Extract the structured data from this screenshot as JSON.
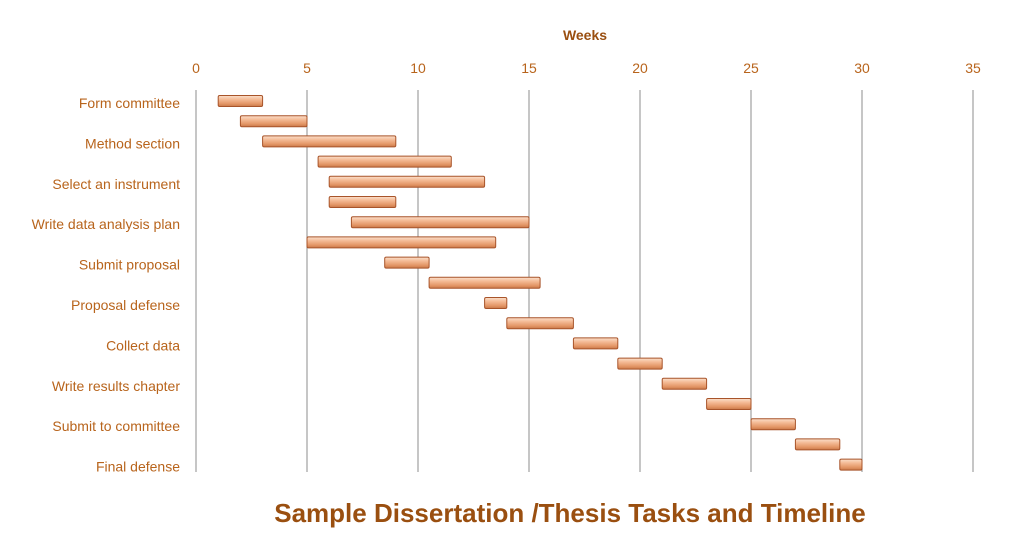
{
  "chart_data": {
    "type": "bar",
    "orientation": "horizontal",
    "stacked_gantt": true,
    "title": "Sample Dissertation /Thesis Tasks and Timeline",
    "xlabel": "Weeks",
    "xlim": [
      0,
      35
    ],
    "xticks": [
      "0",
      "5",
      "10",
      "15",
      "20",
      "25",
      "30",
      "35"
    ],
    "grid": "vertical",
    "bar_color": "#e8a276",
    "categories": [
      "Form committee",
      "Method section",
      "Select an instrument",
      "Write data analysis plan",
      "Submit proposal",
      "Proposal defense",
      "Collect data",
      "Write results chapter",
      "Submit to committee",
      "Final defense"
    ],
    "tasks": [
      {
        "start": 1,
        "end": 3
      },
      {
        "start": 2,
        "end": 5
      },
      {
        "start": 3,
        "end": 9
      },
      {
        "start": 5.5,
        "end": 11.5
      },
      {
        "start": 6,
        "end": 13
      },
      {
        "start": 6,
        "end": 9
      },
      {
        "start": 7,
        "end": 15
      },
      {
        "start": 5,
        "end": 13.5
      },
      {
        "start": 8.5,
        "end": 10.5
      },
      {
        "start": 10.5,
        "end": 15.5
      },
      {
        "start": 13,
        "end": 14
      },
      {
        "start": 14,
        "end": 17
      },
      {
        "start": 17,
        "end": 19
      },
      {
        "start": 19,
        "end": 21
      },
      {
        "start": 21,
        "end": 23
      },
      {
        "start": 23,
        "end": 25
      },
      {
        "start": 25,
        "end": 27
      },
      {
        "start": 27,
        "end": 29
      },
      {
        "start": 29,
        "end": 30
      }
    ]
  }
}
